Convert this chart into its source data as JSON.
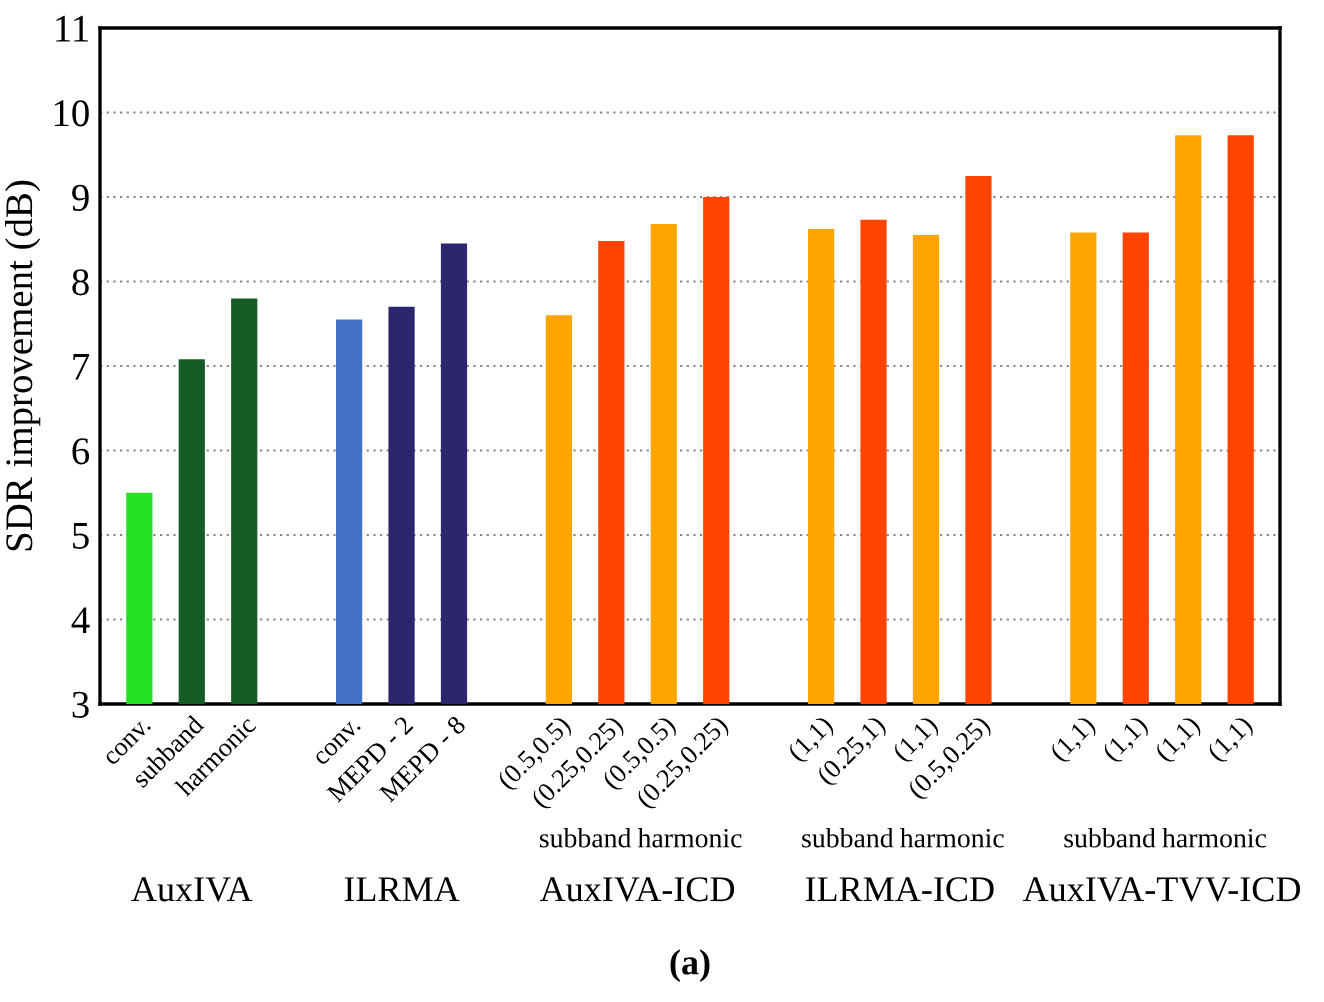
{
  "chart_data": {
    "type": "bar",
    "ylabel": "SDR improvement (dB)",
    "categories": [
      "conv.",
      "subband",
      "harmonic",
      null,
      "conv.",
      "MEPD - 2",
      "MEPD - 8",
      null,
      "(0.5,0.5)",
      "(0.25,0.25)",
      "(0.5,0.5)",
      "(0.25,0.25)",
      null,
      "(1,1)",
      "(0.25,1)",
      "(1,1)",
      "(0.5,0.25)",
      null,
      "(1,1)",
      "(1,1)",
      "(1,1)",
      "(1,1)"
    ],
    "values": [
      5.5,
      7.08,
      7.8,
      null,
      7.55,
      7.7,
      8.45,
      null,
      7.6,
      8.48,
      8.68,
      9.0,
      null,
      8.62,
      8.73,
      8.55,
      9.25,
      null,
      8.58,
      8.58,
      9.73,
      9.73
    ],
    "colors": [
      "#22e022",
      "#165c26",
      "#165c26",
      null,
      "#4472c4",
      "#2c266e",
      "#2c266e",
      null,
      "#ffa500",
      "#ff4500",
      "#ffa500",
      "#ff4500",
      null,
      "#ffa500",
      "#ff4500",
      "#ffa500",
      "#ff4500",
      null,
      "#ffa500",
      "#ff4500",
      "#ffa500",
      "#ff4500"
    ],
    "ylim": [
      3,
      11
    ],
    "yticks": [
      3,
      4,
      5,
      6,
      7,
      8,
      9,
      10,
      11
    ],
    "grid": "y",
    "annotations": [
      "AuxIVA",
      "ILRMA",
      "subband",
      "harmonic",
      "AuxIVA-ICD",
      "subband",
      "harmonic",
      "ILRMA-ICD",
      "subband",
      "harmonic",
      "AuxIVA-TVV-ICD",
      "(a)"
    ]
  }
}
